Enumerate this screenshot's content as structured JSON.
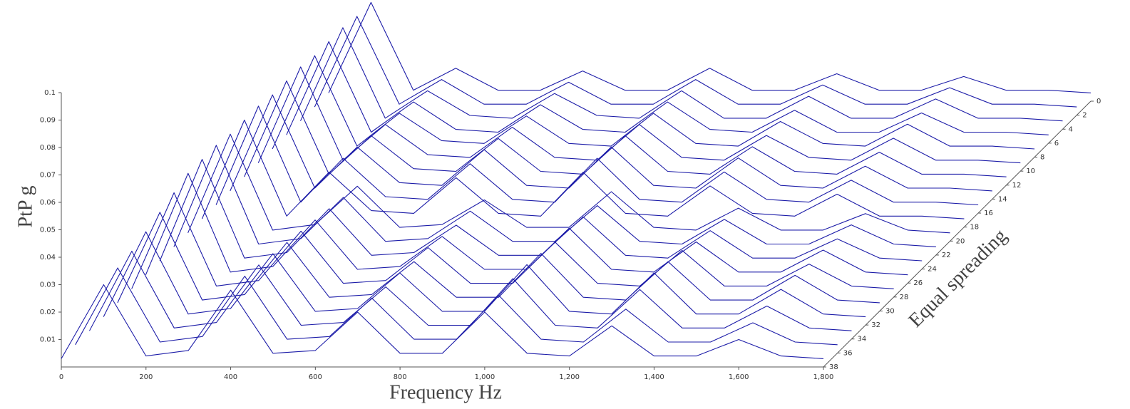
{
  "chart_data": {
    "type": "waterfall",
    "xlabel": "Frequency Hz",
    "ylabel": "PtP g",
    "zlabel": "Equal spreading",
    "color": "#1c1ca8",
    "x": [
      0,
      100,
      200,
      300,
      400,
      500,
      600,
      700,
      800,
      900,
      1000,
      1100,
      1200,
      1300,
      1400,
      1500,
      1600,
      1700,
      1800
    ],
    "xlim": [
      0,
      1800
    ],
    "xticks": [
      0,
      200,
      400,
      600,
      800,
      {
        "value": 1000,
        "label": "1,000"
      },
      {
        "value": 1200,
        "label": "1,200"
      },
      {
        "value": 1400,
        "label": "1,400"
      },
      {
        "value": 1600,
        "label": "1,600"
      },
      {
        "value": 1800,
        "label": "1,800"
      }
    ],
    "ylim": [
      0,
      0.1
    ],
    "yticks": [
      0.01,
      0.02,
      0.03,
      0.04,
      0.05,
      0.06,
      0.07,
      0.08,
      0.09,
      0.1
    ],
    "zlim": [
      0,
      38
    ],
    "zticks": [
      0,
      2,
      4,
      6,
      8,
      10,
      12,
      14,
      16,
      18,
      20,
      22,
      24,
      26,
      28,
      30,
      32,
      34,
      36,
      38
    ],
    "series": [
      {
        "z": 0,
        "values": [
          0.003,
          0.036,
          0.004,
          0.012,
          0.004,
          0.004,
          0.011,
          0.004,
          0.004,
          0.012,
          0.004,
          0.004,
          0.01,
          0.004,
          0.004,
          0.009,
          0.004,
          0.004,
          0.003
        ]
      },
      {
        "z": 2,
        "values": [
          0.003,
          0.036,
          0.004,
          0.013,
          0.004,
          0.004,
          0.012,
          0.004,
          0.004,
          0.013,
          0.004,
          0.004,
          0.011,
          0.004,
          0.004,
          0.01,
          0.004,
          0.004,
          0.003
        ]
      },
      {
        "z": 4,
        "values": [
          0.003,
          0.037,
          0.004,
          0.014,
          0.005,
          0.004,
          0.013,
          0.005,
          0.004,
          0.014,
          0.004,
          0.004,
          0.012,
          0.004,
          0.004,
          0.011,
          0.004,
          0.004,
          0.003
        ]
      },
      {
        "z": 6,
        "values": [
          0.003,
          0.037,
          0.004,
          0.015,
          0.005,
          0.004,
          0.014,
          0.005,
          0.004,
          0.015,
          0.005,
          0.004,
          0.012,
          0.004,
          0.004,
          0.011,
          0.004,
          0.004,
          0.003
        ]
      },
      {
        "z": 8,
        "values": [
          0.003,
          0.037,
          0.004,
          0.016,
          0.006,
          0.005,
          0.015,
          0.005,
          0.004,
          0.016,
          0.005,
          0.004,
          0.013,
          0.005,
          0.004,
          0.012,
          0.004,
          0.004,
          0.003
        ]
      },
      {
        "z": 10,
        "values": [
          0.003,
          0.038,
          0.004,
          0.017,
          0.006,
          0.005,
          0.016,
          0.005,
          0.004,
          0.017,
          0.005,
          0.004,
          0.013,
          0.005,
          0.004,
          0.012,
          0.004,
          0.004,
          0.003
        ]
      },
      {
        "z": 12,
        "values": [
          0.003,
          0.038,
          0.004,
          0.018,
          0.006,
          0.005,
          0.017,
          0.005,
          0.004,
          0.018,
          0.005,
          0.004,
          0.014,
          0.005,
          0.004,
          0.012,
          0.004,
          0.004,
          0.003
        ]
      },
      {
        "z": 14,
        "values": [
          0.003,
          0.038,
          0.004,
          0.019,
          0.006,
          0.005,
          0.018,
          0.005,
          0.004,
          0.019,
          0.005,
          0.004,
          0.015,
          0.005,
          0.004,
          0.012,
          0.004,
          0.004,
          0.003
        ]
      },
      {
        "z": 16,
        "values": [
          0.003,
          0.039,
          0.004,
          0.02,
          0.006,
          0.005,
          0.018,
          0.005,
          0.004,
          0.02,
          0.005,
          0.004,
          0.015,
          0.005,
          0.004,
          0.012,
          0.004,
          0.004,
          0.003
        ]
      },
      {
        "z": 18,
        "values": [
          0.003,
          0.039,
          0.004,
          0.02,
          0.006,
          0.005,
          0.018,
          0.005,
          0.004,
          0.02,
          0.005,
          0.004,
          0.015,
          0.005,
          0.004,
          0.012,
          0.004,
          0.004,
          0.003
        ]
      },
      {
        "z": 20,
        "values": [
          0.003,
          0.039,
          0.004,
          0.006,
          0.02,
          0.005,
          0.006,
          0.015,
          0.005,
          0.005,
          0.018,
          0.005,
          0.004,
          0.012,
          0.004,
          0.004,
          0.01,
          0.004,
          0.003
        ]
      },
      {
        "z": 22,
        "values": [
          0.003,
          0.04,
          0.004,
          0.006,
          0.021,
          0.005,
          0.006,
          0.016,
          0.005,
          0.005,
          0.018,
          0.005,
          0.004,
          0.013,
          0.004,
          0.004,
          0.011,
          0.004,
          0.003
        ]
      },
      {
        "z": 24,
        "values": [
          0.003,
          0.04,
          0.004,
          0.006,
          0.022,
          0.005,
          0.006,
          0.016,
          0.005,
          0.005,
          0.019,
          0.005,
          0.004,
          0.014,
          0.004,
          0.004,
          0.011,
          0.004,
          0.003
        ]
      },
      {
        "z": 26,
        "values": [
          0.003,
          0.04,
          0.004,
          0.006,
          0.023,
          0.005,
          0.006,
          0.017,
          0.005,
          0.005,
          0.02,
          0.005,
          0.004,
          0.015,
          0.004,
          0.004,
          0.012,
          0.004,
          0.003
        ]
      },
      {
        "z": 28,
        "values": [
          0.003,
          0.038,
          0.004,
          0.006,
          0.024,
          0.005,
          0.006,
          0.018,
          0.005,
          0.005,
          0.02,
          0.005,
          0.004,
          0.017,
          0.004,
          0.004,
          0.012,
          0.004,
          0.003
        ]
      },
      {
        "z": 30,
        "values": [
          0.003,
          0.036,
          0.004,
          0.006,
          0.025,
          0.005,
          0.006,
          0.018,
          0.005,
          0.005,
          0.021,
          0.005,
          0.004,
          0.018,
          0.004,
          0.004,
          0.013,
          0.004,
          0.003
        ]
      },
      {
        "z": 32,
        "values": [
          0.003,
          0.034,
          0.004,
          0.006,
          0.026,
          0.005,
          0.006,
          0.019,
          0.005,
          0.005,
          0.022,
          0.005,
          0.004,
          0.019,
          0.004,
          0.004,
          0.013,
          0.004,
          0.003
        ]
      },
      {
        "z": 34,
        "values": [
          0.003,
          0.032,
          0.004,
          0.006,
          0.027,
          0.005,
          0.006,
          0.019,
          0.005,
          0.005,
          0.022,
          0.005,
          0.004,
          0.018,
          0.004,
          0.004,
          0.012,
          0.004,
          0.003
        ]
      },
      {
        "z": 36,
        "values": [
          0.003,
          0.031,
          0.004,
          0.006,
          0.028,
          0.005,
          0.006,
          0.02,
          0.005,
          0.005,
          0.021,
          0.005,
          0.004,
          0.016,
          0.004,
          0.004,
          0.011,
          0.004,
          0.003
        ]
      },
      {
        "z": 38,
        "values": [
          0.003,
          0.03,
          0.004,
          0.006,
          0.028,
          0.005,
          0.006,
          0.02,
          0.005,
          0.005,
          0.02,
          0.005,
          0.004,
          0.015,
          0.004,
          0.004,
          0.01,
          0.004,
          0.003
        ]
      }
    ]
  }
}
